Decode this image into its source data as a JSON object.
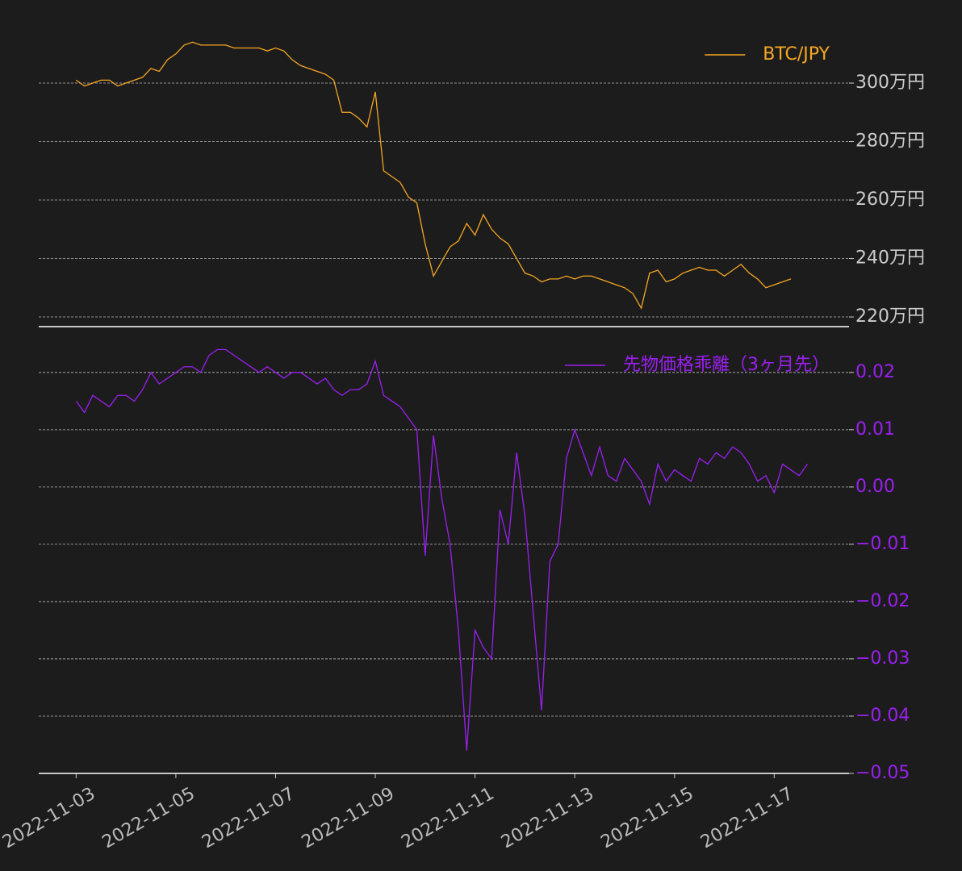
{
  "chart_data": [
    {
      "type": "line",
      "legend": "upper right",
      "grid": true,
      "xlim": [
        "2022-11-02T06:00",
        "2022-11-18T12:00"
      ],
      "ylim": [
        216.7,
        322.9
      ],
      "yticks": [
        {
          "value": 220,
          "label": "220万円"
        },
        {
          "value": 240,
          "label": "240万円"
        },
        {
          "value": 260,
          "label": "260万円"
        },
        {
          "value": 280,
          "label": "280万円"
        },
        {
          "value": 300,
          "label": "300万円"
        }
      ],
      "tick_color": "#cccccc",
      "x": [
        "2022-11-03T00:00",
        "2022-11-03T04:00",
        "2022-11-03T08:00",
        "2022-11-03T12:00",
        "2022-11-03T16:00",
        "2022-11-03T20:00",
        "2022-11-04T00:00",
        "2022-11-04T04:00",
        "2022-11-04T08:00",
        "2022-11-04T12:00",
        "2022-11-04T16:00",
        "2022-11-04T20:00",
        "2022-11-05T00:00",
        "2022-11-05T04:00",
        "2022-11-05T08:00",
        "2022-11-05T12:00",
        "2022-11-05T16:00",
        "2022-11-05T20:00",
        "2022-11-06T00:00",
        "2022-11-06T04:00",
        "2022-11-06T08:00",
        "2022-11-06T12:00",
        "2022-11-06T16:00",
        "2022-11-06T20:00",
        "2022-11-07T00:00",
        "2022-11-07T04:00",
        "2022-11-07T08:00",
        "2022-11-07T12:00",
        "2022-11-07T16:00",
        "2022-11-07T20:00",
        "2022-11-08T00:00",
        "2022-11-08T04:00",
        "2022-11-08T08:00",
        "2022-11-08T12:00",
        "2022-11-08T16:00",
        "2022-11-08T20:00",
        "2022-11-09T00:00",
        "2022-11-09T04:00",
        "2022-11-09T08:00",
        "2022-11-09T12:00",
        "2022-11-09T16:00",
        "2022-11-09T20:00",
        "2022-11-10T00:00",
        "2022-11-10T04:00",
        "2022-11-10T08:00",
        "2022-11-10T12:00",
        "2022-11-10T16:00",
        "2022-11-10T20:00",
        "2022-11-11T00:00",
        "2022-11-11T04:00",
        "2022-11-11T08:00",
        "2022-11-11T12:00",
        "2022-11-11T16:00",
        "2022-11-11T20:00",
        "2022-11-12T00:00",
        "2022-11-12T04:00",
        "2022-11-12T08:00",
        "2022-11-12T12:00",
        "2022-11-12T16:00",
        "2022-11-12T20:00",
        "2022-11-13T00:00",
        "2022-11-13T04:00",
        "2022-11-13T08:00",
        "2022-11-13T12:00",
        "2022-11-13T16:00",
        "2022-11-13T20:00",
        "2022-11-14T00:00",
        "2022-11-14T04:00",
        "2022-11-14T08:00",
        "2022-11-14T12:00",
        "2022-11-14T16:00",
        "2022-11-14T20:00",
        "2022-11-15T00:00",
        "2022-11-15T04:00",
        "2022-11-15T08:00",
        "2022-11-15T12:00",
        "2022-11-15T16:00",
        "2022-11-15T20:00",
        "2022-11-16T00:00",
        "2022-11-16T04:00",
        "2022-11-16T08:00",
        "2022-11-16T12:00",
        "2022-11-16T16:00",
        "2022-11-16T20:00",
        "2022-11-17T00:00",
        "2022-11-17T04:00",
        "2022-11-17T08:00"
      ],
      "series": [
        {
          "name": "BTC/JPY",
          "color": "#f5a623",
          "values": [
            301,
            299,
            300,
            301,
            301,
            299,
            300,
            301,
            302,
            305,
            304,
            308,
            310,
            313,
            314,
            313,
            313,
            313,
            313,
            312,
            312,
            312,
            312,
            311,
            312,
            311,
            308,
            306,
            305,
            304,
            303,
            301,
            290,
            290,
            288,
            285,
            297,
            270,
            268,
            266,
            261,
            259,
            245,
            234,
            239,
            244,
            246,
            252,
            248,
            255,
            250,
            247,
            245,
            240,
            235,
            234,
            232,
            233,
            233,
            234,
            233,
            234,
            234,
            233,
            232,
            231,
            230,
            228,
            223,
            235,
            236,
            232,
            233,
            235,
            236,
            237,
            236,
            236,
            234,
            236,
            238,
            235,
            233,
            230,
            231,
            232,
            233
          ]
        }
      ]
    },
    {
      "type": "line",
      "legend": "upper right",
      "grid": true,
      "xlim": [
        "2022-11-02T06:00",
        "2022-11-18T12:00"
      ],
      "ylim": [
        -0.05,
        0.028
      ],
      "yticks": [
        {
          "value": -0.05,
          "label": "−0.05"
        },
        {
          "value": -0.04,
          "label": "−0.04"
        },
        {
          "value": -0.03,
          "label": "−0.03"
        },
        {
          "value": -0.02,
          "label": "−0.02"
        },
        {
          "value": -0.01,
          "label": "−0.01"
        },
        {
          "value": 0,
          "label": "0.00"
        },
        0.01,
        0.02
      ],
      "tick_color": "#9b1ff0",
      "xticks": [
        "2022-11-03",
        "2022-11-05",
        "2022-11-07",
        "2022-11-09",
        "2022-11-11",
        "2022-11-13",
        "2022-11-15",
        "2022-11-17"
      ],
      "x": [
        "2022-11-03T00:00",
        "2022-11-03T04:00",
        "2022-11-03T08:00",
        "2022-11-03T12:00",
        "2022-11-03T16:00",
        "2022-11-03T20:00",
        "2022-11-04T00:00",
        "2022-11-04T04:00",
        "2022-11-04T08:00",
        "2022-11-04T12:00",
        "2022-11-04T16:00",
        "2022-11-04T20:00",
        "2022-11-05T00:00",
        "2022-11-05T04:00",
        "2022-11-05T08:00",
        "2022-11-05T12:00",
        "2022-11-05T16:00",
        "2022-11-05T20:00",
        "2022-11-06T00:00",
        "2022-11-06T04:00",
        "2022-11-06T08:00",
        "2022-11-06T12:00",
        "2022-11-06T16:00",
        "2022-11-06T20:00",
        "2022-11-07T00:00",
        "2022-11-07T04:00",
        "2022-11-07T08:00",
        "2022-11-07T12:00",
        "2022-11-07T16:00",
        "2022-11-07T20:00",
        "2022-11-08T00:00",
        "2022-11-08T04:00",
        "2022-11-08T08:00",
        "2022-11-08T12:00",
        "2022-11-08T16:00",
        "2022-11-08T20:00",
        "2022-11-09T00:00",
        "2022-11-09T04:00",
        "2022-11-09T08:00",
        "2022-11-09T12:00",
        "2022-11-09T16:00",
        "2022-11-09T20:00",
        "2022-11-10T00:00",
        "2022-11-10T04:00",
        "2022-11-10T08:00",
        "2022-11-10T12:00",
        "2022-11-10T16:00",
        "2022-11-10T20:00",
        "2022-11-11T00:00",
        "2022-11-11T04:00",
        "2022-11-11T08:00",
        "2022-11-11T12:00",
        "2022-11-11T16:00",
        "2022-11-11T20:00",
        "2022-11-12T00:00",
        "2022-11-12T04:00",
        "2022-11-12T08:00",
        "2022-11-12T12:00",
        "2022-11-12T16:00",
        "2022-11-12T20:00",
        "2022-11-13T00:00",
        "2022-11-13T04:00",
        "2022-11-13T08:00",
        "2022-11-13T12:00",
        "2022-11-13T16:00",
        "2022-11-13T20:00",
        "2022-11-14T00:00",
        "2022-11-14T04:00",
        "2022-11-14T08:00",
        "2022-11-14T12:00",
        "2022-11-14T16:00",
        "2022-11-14T20:00",
        "2022-11-15T00:00",
        "2022-11-15T04:00",
        "2022-11-15T08:00",
        "2022-11-15T12:00",
        "2022-11-15T16:00",
        "2022-11-15T20:00",
        "2022-11-16T00:00",
        "2022-11-16T04:00",
        "2022-11-16T08:00",
        "2022-11-16T12:00",
        "2022-11-16T16:00",
        "2022-11-16T20:00",
        "2022-11-17T00:00",
        "2022-11-17T04:00",
        "2022-11-17T08:00",
        "2022-11-17T12:00",
        "2022-11-17T16:00"
      ],
      "series": [
        {
          "name": "先物価格乖離（3ヶ月先）",
          "color": "#9b1ff0",
          "values": [
            0.015,
            0.013,
            0.016,
            0.015,
            0.014,
            0.016,
            0.016,
            0.015,
            0.017,
            0.02,
            0.018,
            0.019,
            0.02,
            0.021,
            0.021,
            0.02,
            0.023,
            0.024,
            0.024,
            0.023,
            0.022,
            0.021,
            0.02,
            0.021,
            0.02,
            0.019,
            0.02,
            0.02,
            0.019,
            0.018,
            0.019,
            0.017,
            0.016,
            0.017,
            0.017,
            0.018,
            0.022,
            0.016,
            0.015,
            0.014,
            0.012,
            0.01,
            -0.012,
            0.009,
            -0.002,
            -0.01,
            -0.025,
            -0.046,
            -0.025,
            -0.028,
            -0.03,
            -0.004,
            -0.01,
            0.006,
            -0.005,
            -0.022,
            -0.039,
            -0.013,
            -0.01,
            0.005,
            0.01,
            0.006,
            0.002,
            0.007,
            0.002,
            0.001,
            0.005,
            0.003,
            0.001,
            -0.003,
            0.004,
            0.001,
            0.003,
            0.002,
            0.001,
            0.005,
            0.004,
            0.006,
            0.005,
            0.007,
            0.006,
            0.004,
            0.001,
            0.002,
            -0.001,
            0.004,
            0.003,
            0.002,
            0.004
          ]
        }
      ]
    }
  ]
}
